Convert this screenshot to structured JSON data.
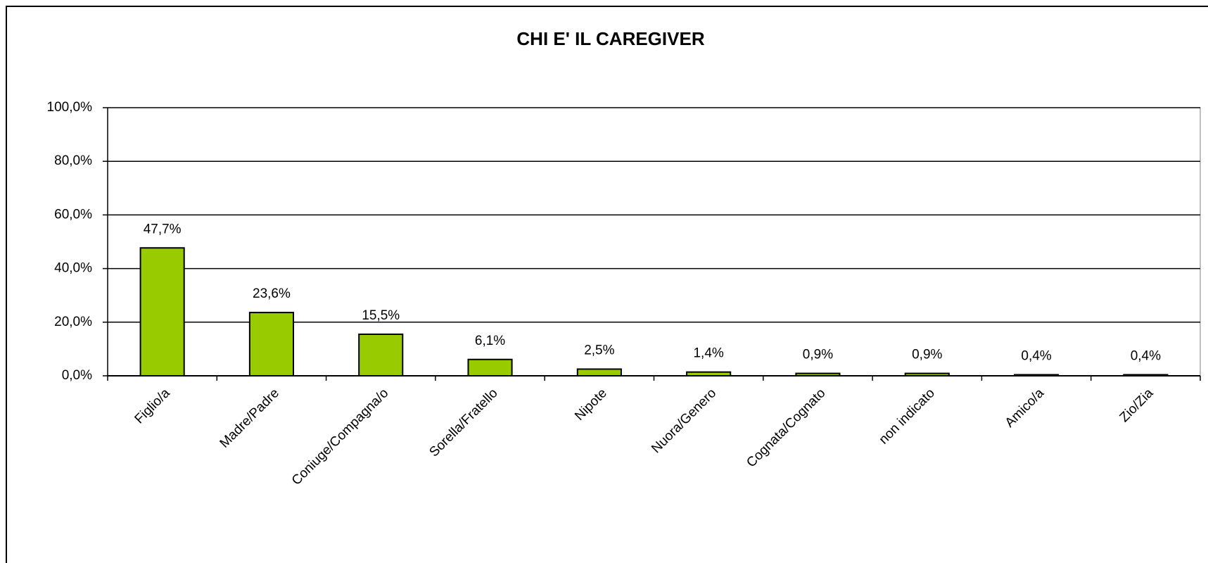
{
  "chart_data": {
    "type": "bar",
    "title": "CHI E' IL CAREGIVER",
    "categories": [
      "Figlio/a",
      "Madre/Padre",
      "Coniuge/Compagna/o",
      "Sorella/Fratello",
      "Nipote",
      "Nuora/Genero",
      "Cognata/Cognato",
      "non indicato",
      "Amico/a",
      "Zio/Zia"
    ],
    "values": [
      47.7,
      23.6,
      15.5,
      6.1,
      2.5,
      1.4,
      0.9,
      0.9,
      0.4,
      0.4
    ],
    "value_labels": [
      "47,7%",
      "23,6%",
      "15,5%",
      "6,1%",
      "2,5%",
      "1,4%",
      "0,9%",
      "0,9%",
      "0,4%",
      "0,4%"
    ],
    "color": "#99cc00",
    "ylim": [
      0,
      100
    ],
    "yticks": [
      {
        "value": 0,
        "label": "0,0%"
      },
      {
        "value": 20,
        "label": "20,0%"
      },
      {
        "value": 40,
        "label": "40,0%"
      },
      {
        "value": 60,
        "label": "60,0%"
      },
      {
        "value": 80,
        "label": "80,0%"
      },
      {
        "value": 100,
        "label": "100,0%"
      }
    ],
    "grid": true
  }
}
